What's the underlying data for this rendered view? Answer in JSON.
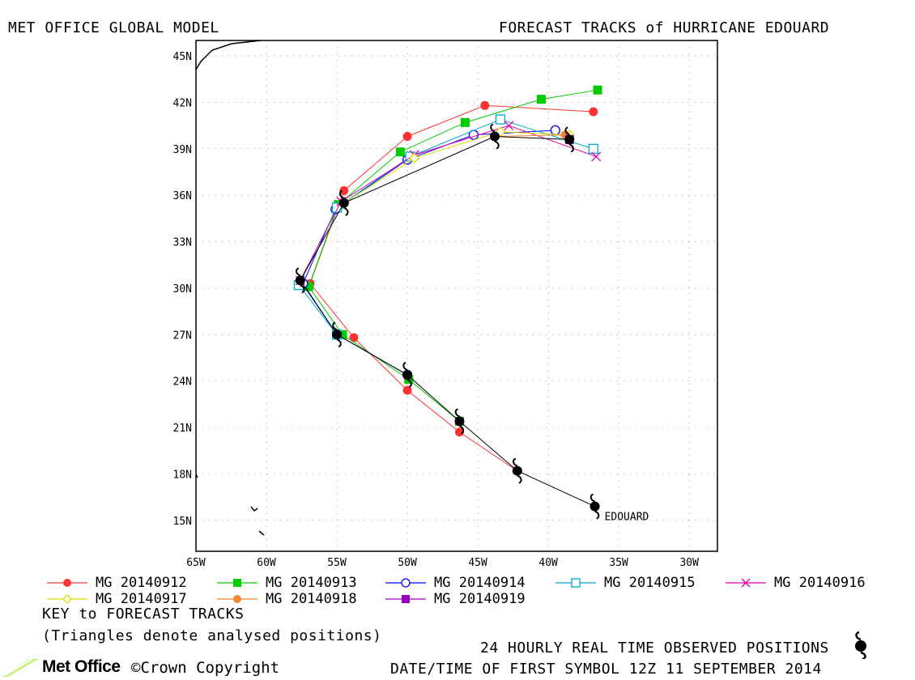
{
  "header": {
    "left_title": "MET OFFICE GLOBAL MODEL",
    "right_title": "FORECAST TRACKS of HURRICANE EDOUARD"
  },
  "map": {
    "lon_range": [
      -65,
      -28
    ],
    "lat_range": [
      13,
      46
    ],
    "lat_ticks": [
      "45N",
      "42N",
      "39N",
      "36N",
      "33N",
      "30N",
      "27N",
      "24N",
      "21N",
      "18N",
      "15N"
    ],
    "lon_ticks": [
      "65W",
      "60W",
      "55W",
      "50W",
      "45W",
      "40W",
      "35W",
      "30W"
    ],
    "storm_label": "EDOUARD"
  },
  "chart_data": {
    "type": "scatter",
    "x_unit": "longitude (degrees, west negative)",
    "y_unit": "latitude (degrees north)",
    "xlim": [
      -65,
      -28
    ],
    "ylim": [
      13,
      46
    ],
    "grid": true,
    "observed_track": {
      "color": "#000000",
      "points": [
        [
          -36.7,
          15.9
        ],
        [
          -42.2,
          18.2
        ],
        [
          -46.3,
          21.4
        ],
        [
          -50.0,
          24.4
        ],
        [
          -55.0,
          27.0
        ],
        [
          -57.6,
          30.5
        ],
        [
          -54.5,
          35.5
        ],
        [
          -43.8,
          39.8
        ],
        [
          -38.5,
          39.6
        ]
      ]
    },
    "series": [
      {
        "name": "MG 20140912",
        "color": "#ff3333",
        "marker": "filled-circle",
        "points": [
          [
            -42.2,
            18.2
          ],
          [
            -46.3,
            20.7
          ],
          [
            -50.0,
            23.4
          ],
          [
            -53.8,
            26.8
          ],
          [
            -56.9,
            30.3
          ],
          [
            -54.5,
            36.3
          ],
          [
            -50.0,
            39.8
          ],
          [
            -44.5,
            41.8
          ],
          [
            -36.8,
            41.4
          ]
        ]
      },
      {
        "name": "MG 20140913",
        "color": "#00cc00",
        "marker": "filled-square",
        "points": [
          [
            -46.3,
            21.4
          ],
          [
            -49.9,
            24.1
          ],
          [
            -54.6,
            27.0
          ],
          [
            -57.0,
            30.1
          ],
          [
            -54.9,
            35.4
          ],
          [
            -50.5,
            38.8
          ],
          [
            -45.9,
            40.7
          ],
          [
            -40.5,
            42.2
          ],
          [
            -36.5,
            42.8
          ]
        ]
      },
      {
        "name": "MG 20140914",
        "color": "#0000ff",
        "marker": "open-circle",
        "points": [
          [
            -50.0,
            24.4
          ],
          [
            -55.0,
            27.0
          ],
          [
            -57.4,
            30.3
          ],
          [
            -55.1,
            35.1
          ],
          [
            -50.0,
            38.3
          ],
          [
            -45.3,
            39.9
          ],
          [
            -39.5,
            40.2
          ]
        ]
      },
      {
        "name": "MG 20140915",
        "color": "#00aacc",
        "marker": "open-square",
        "points": [
          [
            -55.0,
            27.0
          ],
          [
            -57.7,
            30.2
          ],
          [
            -55.0,
            35.2
          ],
          [
            -49.8,
            38.5
          ],
          [
            -43.4,
            40.9
          ],
          [
            -36.8,
            39.0
          ]
        ]
      },
      {
        "name": "MG 20140916",
        "color": "#dd00aa",
        "marker": "cross",
        "points": [
          [
            -57.6,
            30.5
          ],
          [
            -54.7,
            35.6
          ],
          [
            -49.5,
            38.6
          ],
          [
            -42.8,
            40.5
          ],
          [
            -36.6,
            38.5
          ]
        ]
      },
      {
        "name": "MG 20140917",
        "color": "#dddd00",
        "marker": "open-diamond",
        "points": [
          [
            -54.5,
            35.5
          ],
          [
            -49.5,
            38.4
          ],
          [
            -43.4,
            40.1
          ],
          [
            -38.5,
            39.9
          ]
        ]
      },
      {
        "name": "MG 20140918",
        "color": "#ee8833",
        "marker": "filled-circle",
        "points": [
          [
            -43.8,
            39.8
          ],
          [
            -38.8,
            39.9
          ]
        ]
      },
      {
        "name": "MG 20140919",
        "color": "#9900bb",
        "marker": "filled-square",
        "points": [
          [
            -38.5,
            39.6
          ]
        ]
      }
    ]
  },
  "legend_key": {
    "title": "KEY to FORECAST TRACKS",
    "note": "(Triangles denote analysed positions)"
  },
  "footer": {
    "observed_note": "24 HOURLY REAL TIME OBSERVED POSITIONS",
    "datetime_note": "DATE/TIME OF FIRST SYMBOL 12Z 11 SEPTEMBER 2014",
    "brand": "Met Office",
    "copyright": "©Crown Copyright",
    "brand_color": "#c8f07a"
  }
}
